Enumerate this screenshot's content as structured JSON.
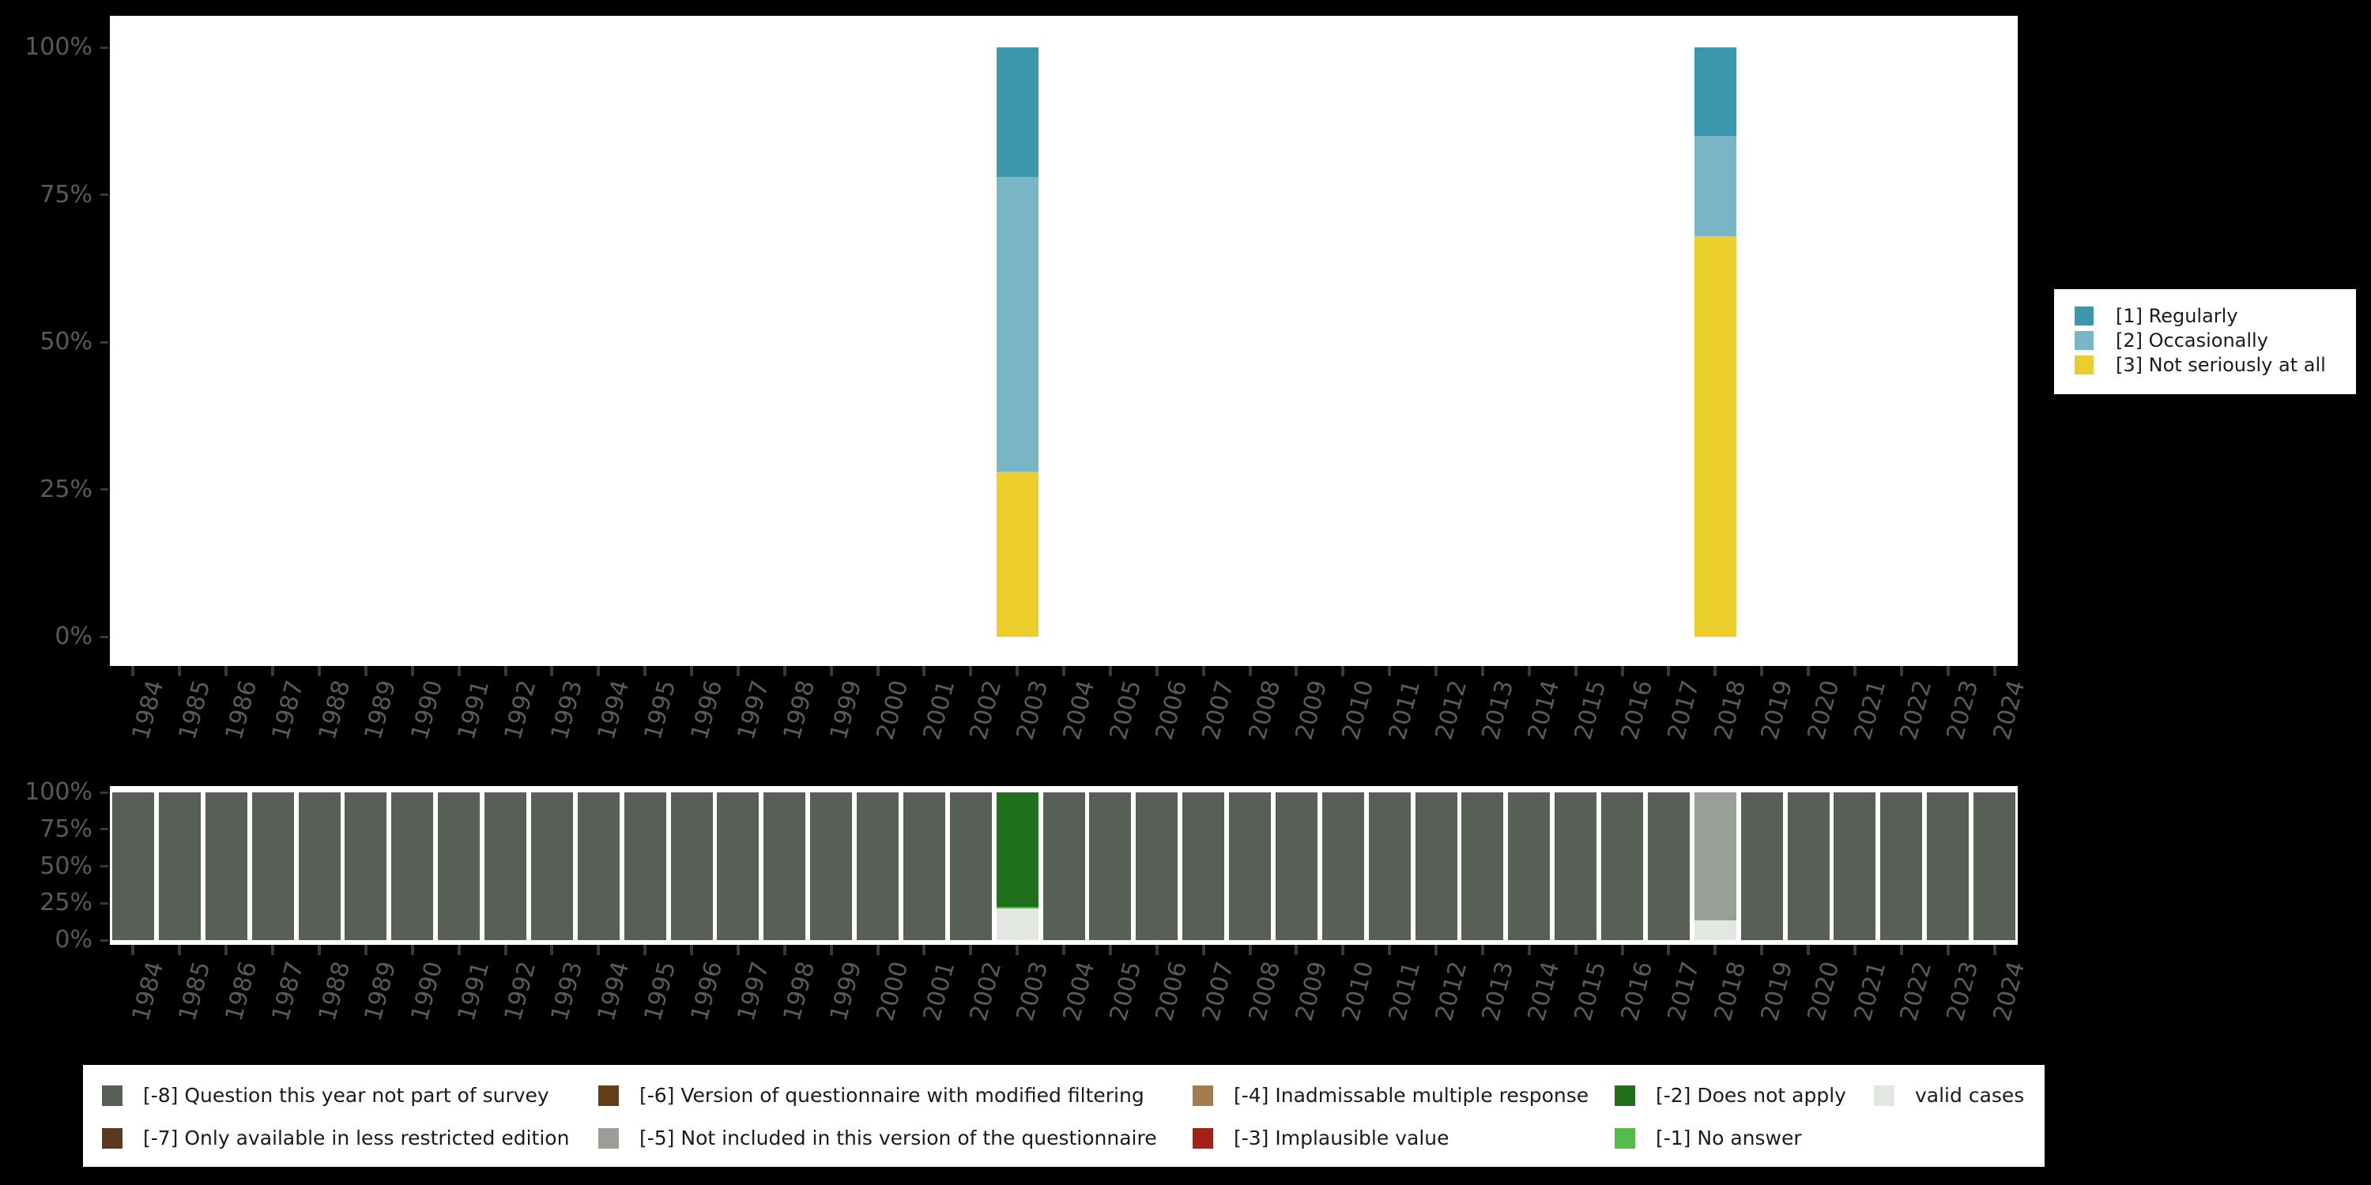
{
  "background_color": "#000000",
  "panel_color": "#ffffff",
  "axis": {
    "tick_color": "#383838",
    "label_color": "#5a5a5a",
    "y_ticks": [
      "100%",
      "75%",
      "50%",
      "25%",
      "0%"
    ],
    "years": [
      "1984",
      "1985",
      "1986",
      "1987",
      "1988",
      "1989",
      "1990",
      "1991",
      "1992",
      "1993",
      "1994",
      "1995",
      "1996",
      "1997",
      "1998",
      "1999",
      "2000",
      "2001",
      "2002",
      "2003",
      "2004",
      "2005",
      "2006",
      "2007",
      "2008",
      "2009",
      "2010",
      "2011",
      "2012",
      "2013",
      "2014",
      "2015",
      "2016",
      "2017",
      "2018",
      "2019",
      "2020",
      "2021",
      "2022",
      "2023",
      "2024"
    ]
  },
  "chart_data": [
    {
      "type": "bar",
      "stacked": true,
      "title": "",
      "xlabel": "",
      "ylabel": "",
      "unit": "percent",
      "ylim": [
        0,
        100
      ],
      "y_tick_labels": [
        "0%",
        "25%",
        "50%",
        "75%",
        "100%"
      ],
      "legend_position": "right",
      "grid": false,
      "categories": [
        "1984",
        "1985",
        "1986",
        "1987",
        "1988",
        "1989",
        "1990",
        "1991",
        "1992",
        "1993",
        "1994",
        "1995",
        "1996",
        "1997",
        "1998",
        "1999",
        "2000",
        "2001",
        "2002",
        "2003",
        "2004",
        "2005",
        "2006",
        "2007",
        "2008",
        "2009",
        "2010",
        "2011",
        "2012",
        "2013",
        "2014",
        "2015",
        "2016",
        "2017",
        "2018",
        "2019",
        "2020",
        "2021",
        "2022",
        "2023",
        "2024"
      ],
      "series": [
        {
          "name": "[1] Regularly",
          "color": "#3a97ae",
          "default": 0,
          "values_by_year": {
            "2003": 22,
            "2018": 15
          }
        },
        {
          "name": "[2] Occasionally",
          "color": "#78b6c6",
          "default": 0,
          "values_by_year": {
            "2003": 50,
            "2018": 17
          }
        },
        {
          "name": "[3] Not seriously at all",
          "color": "#ebcd2c",
          "default": 0,
          "values_by_year": {
            "2003": 28,
            "2018": 68
          }
        }
      ]
    },
    {
      "type": "bar",
      "stacked": true,
      "title": "",
      "xlabel": "",
      "ylabel": "",
      "unit": "percent",
      "ylim": [
        0,
        100
      ],
      "y_tick_labels": [
        "0%",
        "25%",
        "50%",
        "75%",
        "100%"
      ],
      "legend_position": "bottom",
      "grid": false,
      "categories": [
        "1984",
        "1985",
        "1986",
        "1987",
        "1988",
        "1989",
        "1990",
        "1991",
        "1992",
        "1993",
        "1994",
        "1995",
        "1996",
        "1997",
        "1998",
        "1999",
        "2000",
        "2001",
        "2002",
        "2003",
        "2004",
        "2005",
        "2006",
        "2007",
        "2008",
        "2009",
        "2010",
        "2011",
        "2012",
        "2013",
        "2014",
        "2015",
        "2016",
        "2017",
        "2018",
        "2019",
        "2020",
        "2021",
        "2022",
        "2023",
        "2024"
      ],
      "series": [
        {
          "name": "[-8] Question this year not part of survey",
          "color": "#575f57",
          "default": 100,
          "values_by_year": {
            "2003": 0,
            "2018": 0
          }
        },
        {
          "name": "[-7] Only available in less restricted edition",
          "color": "#5c3a20",
          "default": 0,
          "values_by_year": {}
        },
        {
          "name": "[-6] Version of questionnaire with modified filtering",
          "color": "#633c18",
          "default": 0,
          "values_by_year": {}
        },
        {
          "name": "[-5] Not included in this version of the questionnaire",
          "color": "#999f97",
          "default": 0,
          "values_by_year": {
            "2018": 86.6
          }
        },
        {
          "name": "[-4] Inadmissable multiple response",
          "color": "#a57b50",
          "default": 0,
          "values_by_year": {}
        },
        {
          "name": "[-3] Implausible value",
          "color": "#a42019",
          "default": 0,
          "values_by_year": {}
        },
        {
          "name": "[-2] Does not apply",
          "color": "#20701c",
          "default": 0,
          "values_by_year": {
            "2003": 77.4
          }
        },
        {
          "name": "[-1] No answer",
          "color": "#55bb4a",
          "default": 0,
          "values_by_year": {
            "2003": 1.4
          }
        },
        {
          "name": "valid cases",
          "color": "#e3e7e1",
          "default": 0,
          "values_by_year": {
            "2003": 21.2,
            "2018": 13.4
          }
        }
      ]
    }
  ],
  "legend_top": {
    "items": [
      {
        "label": "[1] Regularly",
        "color": "#3a97ae"
      },
      {
        "label": "[2] Occasionally",
        "color": "#78b6c6"
      },
      {
        "label": "[3] Not seriously at all",
        "color": "#ebcd2c"
      }
    ]
  },
  "legend_bottom": {
    "columns": [
      {
        "items": [
          {
            "label": "[-8] Question this year not part of survey",
            "color": "#575f57"
          },
          {
            "label": "[-7] Only available in less restricted edition",
            "color": "#5c3a20"
          }
        ]
      },
      {
        "items": [
          {
            "label": "[-6] Version of questionnaire with modified filtering",
            "color": "#633c18"
          },
          {
            "label": "[-5] Not included in this version of the questionnaire",
            "color": "#999f97"
          }
        ]
      },
      {
        "items": [
          {
            "label": "[-4] Inadmissable multiple response",
            "color": "#a57b50"
          },
          {
            "label": "[-3] Implausible value",
            "color": "#a42019"
          }
        ]
      },
      {
        "items": [
          {
            "label": "[-2] Does not apply",
            "color": "#20701c"
          },
          {
            "label": "[-1] No answer",
            "color": "#55bb4a"
          }
        ]
      },
      {
        "items": [
          {
            "label": "valid cases",
            "color": "#e3e7e1"
          }
        ]
      }
    ]
  }
}
